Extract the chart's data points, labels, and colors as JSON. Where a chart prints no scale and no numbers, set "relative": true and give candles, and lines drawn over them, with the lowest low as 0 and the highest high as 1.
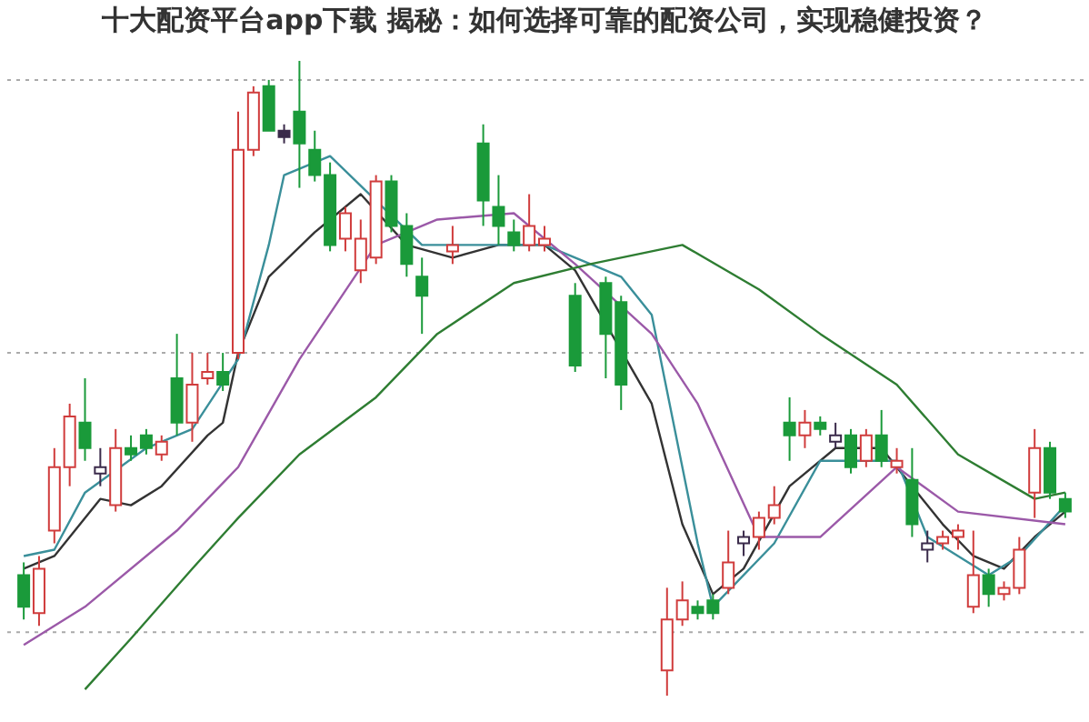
{
  "chart_data": {
    "type": "candlestick",
    "title": "十大配资平台app下载 揭秘：如何选择可靠的配资公司，实现稳健投资？",
    "relative": true,
    "categories": [
      null,
      null,
      null,
      null,
      null,
      null,
      null,
      null,
      null,
      null,
      null,
      null,
      null,
      null,
      null,
      null,
      null,
      null,
      null,
      null,
      null,
      null,
      null,
      null,
      null,
      null,
      null,
      null,
      null,
      null,
      null,
      null,
      null,
      null,
      null,
      null,
      null,
      null,
      null,
      null,
      null,
      null,
      null,
      null,
      null,
      null,
      null,
      null,
      null,
      null,
      null,
      null,
      null,
      null,
      null,
      null,
      null,
      null,
      null,
      null,
      null,
      null,
      null,
      null,
      null,
      null,
      null,
      null,
      null
    ],
    "ohlc": [
      [
        0.19,
        0.21,
        0.12,
        0.14
      ],
      [
        0.13,
        0.22,
        0.11,
        0.2
      ],
      [
        0.26,
        0.39,
        0.24,
        0.36
      ],
      [
        0.36,
        0.46,
        0.33,
        0.44
      ],
      [
        0.43,
        0.5,
        0.37,
        0.39
      ],
      [
        0.35,
        0.39,
        0.33,
        0.36
      ],
      [
        0.3,
        0.42,
        0.29,
        0.39
      ],
      [
        0.39,
        0.41,
        0.37,
        0.38
      ],
      [
        0.41,
        0.42,
        0.38,
        0.39
      ],
      [
        0.38,
        0.41,
        0.37,
        0.4
      ],
      [
        0.5,
        0.57,
        0.41,
        0.43
      ],
      [
        0.43,
        0.54,
        0.4,
        0.49
      ],
      [
        0.5,
        0.54,
        0.49,
        0.51
      ],
      [
        0.51,
        0.54,
        0.48,
        0.49
      ],
      [
        0.54,
        0.92,
        0.53,
        0.86
      ],
      [
        0.86,
        0.96,
        0.85,
        0.95
      ],
      [
        0.96,
        0.97,
        0.89,
        0.89
      ],
      [
        0.89,
        0.9,
        0.87,
        0.88
      ],
      [
        0.92,
        1.0,
        0.8,
        0.87
      ],
      [
        0.86,
        0.89,
        0.81,
        0.82
      ],
      [
        0.82,
        0.84,
        0.7,
        0.71
      ],
      [
        0.72,
        0.77,
        0.7,
        0.76
      ],
      [
        0.67,
        0.75,
        0.65,
        0.72
      ],
      [
        0.69,
        0.82,
        0.68,
        0.81
      ],
      [
        0.81,
        0.82,
        0.73,
        0.74
      ],
      [
        0.74,
        0.76,
        0.66,
        0.68
      ],
      [
        0.66,
        0.69,
        0.57,
        0.63
      ],
      null,
      [
        0.7,
        0.74,
        0.68,
        0.71
      ],
      null,
      [
        0.87,
        0.9,
        0.74,
        0.78
      ],
      [
        0.77,
        0.82,
        0.71,
        0.74
      ],
      [
        0.73,
        0.75,
        0.7,
        0.71
      ],
      [
        0.71,
        0.79,
        0.7,
        0.74
      ],
      [
        0.71,
        0.74,
        0.7,
        0.72
      ],
      null,
      [
        0.63,
        0.65,
        0.51,
        0.52
      ],
      null,
      [
        0.65,
        0.66,
        0.5,
        0.57
      ],
      [
        0.62,
        0.63,
        0.45,
        0.49
      ],
      null,
      null,
      [
        0.04,
        0.17,
        0,
        0.12
      ],
      [
        0.12,
        0.18,
        0.11,
        0.15
      ],
      [
        0.14,
        0.15,
        0.12,
        0.13
      ],
      [
        0.15,
        0.16,
        0.12,
        0.13
      ],
      [
        0.17,
        0.26,
        0.16,
        0.21
      ],
      [
        0.24,
        0.26,
        0.22,
        0.25
      ],
      [
        0.25,
        0.29,
        0.23,
        0.28
      ],
      [
        0.28,
        0.33,
        0.27,
        0.3
      ],
      [
        0.43,
        0.47,
        0.37,
        0.41
      ],
      [
        0.41,
        0.45,
        0.39,
        0.43
      ],
      [
        0.43,
        0.44,
        0.41,
        0.42
      ],
      [
        0.4,
        0.43,
        0.39,
        0.41
      ],
      [
        0.41,
        0.42,
        0.35,
        0.36
      ],
      [
        0.37,
        0.42,
        0.36,
        0.41
      ],
      [
        0.41,
        0.45,
        0.36,
        0.37
      ],
      [
        0.36,
        0.39,
        0.35,
        0.37
      ],
      [
        0.34,
        0.39,
        0.25,
        0.27
      ],
      [
        0.23,
        0.26,
        0.21,
        0.24
      ],
      [
        0.24,
        0.26,
        0.23,
        0.25
      ],
      [
        0.25,
        0.27,
        0.23,
        0.26
      ],
      [
        0.14,
        0.26,
        0.13,
        0.19
      ],
      [
        0.19,
        0.2,
        0.14,
        0.16
      ],
      [
        0.16,
        0.18,
        0.15,
        0.17
      ],
      [
        0.17,
        0.25,
        0.16,
        0.23
      ],
      [
        0.32,
        0.42,
        0.28,
        0.39
      ],
      [
        0.39,
        0.4,
        0.31,
        0.32
      ],
      [
        0.31,
        0.32,
        0.28,
        0.29
      ]
    ],
    "colors": [
      "#1a9a3a",
      "#d03c3c",
      "#d03c3c",
      "#d03c3c",
      "#1a9a3a",
      "#3a2a4a",
      "#d03c3c",
      "#1a9a3a",
      "#1a9a3a",
      "#d03c3c",
      "#1a9a3a",
      "#d03c3c",
      "#d03c3c",
      "#1a9a3a",
      "#d03c3c",
      "#d03c3c",
      "#1a9a3a",
      "#3a2a4a",
      "#1a9a3a",
      "#1a9a3a",
      "#1a9a3a",
      "#d03c3c",
      "#d03c3c",
      "#d03c3c",
      "#1a9a3a",
      "#1a9a3a",
      "#1a9a3a",
      null,
      "#d03c3c",
      null,
      "#1a9a3a",
      "#1a9a3a",
      "#1a9a3a",
      "#d03c3c",
      "#d03c3c",
      null,
      "#1a9a3a",
      null,
      "#1a9a3a",
      "#1a9a3a",
      null,
      null,
      "#d03c3c",
      "#d03c3c",
      "#1a9a3a",
      "#1a9a3a",
      "#d03c3c",
      "#3a2a4a",
      "#d03c3c",
      "#d03c3c",
      "#1a9a3a",
      "#d03c3c",
      "#1a9a3a",
      "#3a2a4a",
      "#1a9a3a",
      "#d03c3c",
      "#1a9a3a",
      "#d03c3c",
      "#1a9a3a",
      "#3a2a4a",
      "#d03c3c",
      "#d03c3c",
      "#d03c3c",
      "#1a9a3a",
      "#d03c3c",
      "#d03c3c",
      "#d03c3c",
      "#1a9a3a",
      "#1a9a3a"
    ],
    "series": [
      {
        "type": "line",
        "color": "#333333",
        "values": [
          0.2,
          null,
          0.22,
          null,
          null,
          0.31,
          null,
          0.3,
          null,
          0.33,
          null,
          null,
          0.41,
          0.43,
          0.54,
          null,
          0.66,
          null,
          null,
          0.73,
          null,
          null,
          0.79,
          null,
          null,
          0.71,
          null,
          null,
          0.69,
          null,
          null,
          0.71,
          null,
          null,
          0.71,
          null,
          0.67,
          null,
          null,
          null,
          null,
          0.46,
          null,
          0.27,
          null,
          0.16,
          null,
          0.2,
          null,
          null,
          0.33,
          null,
          null,
          0.39,
          null,
          null,
          0.39,
          null,
          0.33,
          null,
          0.27,
          null,
          0.22,
          null,
          0.2,
          null,
          0.25,
          null,
          0.29
        ]
      },
      {
        "type": "line",
        "color": "#3a8f9a",
        "values": [
          0.22,
          null,
          0.23,
          null,
          0.32,
          null,
          null,
          null,
          0.39,
          null,
          null,
          0.42,
          null,
          null,
          0.53,
          null,
          0.71,
          0.82,
          null,
          null,
          0.85,
          null,
          null,
          0.78,
          null,
          null,
          0.71,
          null,
          null,
          null,
          null,
          null,
          null,
          null,
          0.71,
          null,
          null,
          null,
          null,
          0.66,
          null,
          0.6,
          null,
          null,
          0.24,
          0.14,
          null,
          null,
          null,
          0.24,
          null,
          null,
          0.37,
          null,
          null,
          null,
          null,
          0.37,
          null,
          0.25,
          null,
          null,
          null,
          0.19,
          null,
          0.22,
          null,
          null,
          0.3
        ]
      },
      {
        "type": "line",
        "color": "#9b59a8",
        "values": [
          0.08,
          null,
          null,
          null,
          0.14,
          null,
          null,
          null,
          null,
          null,
          0.26,
          null,
          null,
          null,
          0.36,
          null,
          null,
          null,
          0.53,
          null,
          null,
          null,
          null,
          0.71,
          null,
          null,
          null,
          0.75,
          null,
          null,
          null,
          null,
          0.76,
          null,
          null,
          null,
          0.68,
          null,
          null,
          null,
          null,
          0.57,
          null,
          null,
          0.46,
          null,
          null,
          null,
          0.25,
          null,
          null,
          null,
          0.25,
          null,
          null,
          null,
          null,
          0.36,
          null,
          null,
          null,
          0.29,
          null,
          null,
          null,
          null,
          null,
          null,
          0.27
        ]
      },
      {
        "type": "line",
        "color": "#2e7d32",
        "values": [
          null,
          null,
          null,
          null,
          0.01,
          null,
          null,
          0.09,
          null,
          null,
          null,
          0.2,
          null,
          null,
          0.28,
          null,
          null,
          null,
          0.38,
          null,
          null,
          null,
          null,
          0.47,
          null,
          null,
          null,
          0.57,
          null,
          null,
          null,
          null,
          0.65,
          null,
          null,
          null,
          null,
          0.68,
          null,
          null,
          null,
          null,
          null,
          0.71,
          null,
          null,
          null,
          null,
          0.64,
          null,
          null,
          null,
          0.57,
          null,
          null,
          null,
          null,
          0.49,
          null,
          null,
          null,
          0.38,
          null,
          null,
          null,
          null,
          0.31,
          null,
          0.32
        ]
      }
    ],
    "ref_lines": [
      {
        "axis": "y",
        "value": 0.97,
        "color": "#aaaaaa",
        "line_style": "dotted"
      },
      {
        "axis": "y",
        "value": 0.54,
        "color": "#aaaaaa",
        "line_style": "dotted"
      },
      {
        "axis": "y",
        "value": 0.1,
        "color": "#aaaaaa",
        "line_style": "dotted"
      }
    ]
  }
}
